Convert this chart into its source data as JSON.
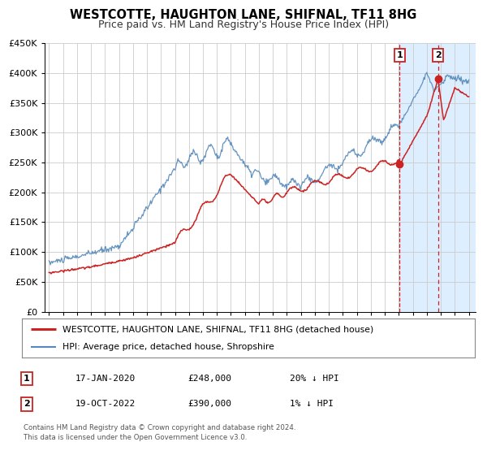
{
  "title": "WESTCOTTE, HAUGHTON LANE, SHIFNAL, TF11 8HG",
  "subtitle": "Price paid vs. HM Land Registry's House Price Index (HPI)",
  "title_fontsize": 10.5,
  "subtitle_fontsize": 9,
  "ylim": [
    0,
    450000
  ],
  "yticks": [
    0,
    50000,
    100000,
    150000,
    200000,
    250000,
    300000,
    350000,
    400000,
    450000
  ],
  "ytick_labels": [
    "£0",
    "£50K",
    "£100K",
    "£150K",
    "£200K",
    "£250K",
    "£300K",
    "£350K",
    "£400K",
    "£450K"
  ],
  "x_start_year": 1995,
  "x_end_year": 2025,
  "hpi_color": "#5588bb",
  "price_color": "#cc2222",
  "marker_color": "#cc2222",
  "vline1_color": "#cc2222",
  "vline2_color": "#cc2222",
  "shade_color": "#ddeeff",
  "sale1_year": 2020.05,
  "sale1_price": 248000,
  "sale1_label": "1",
  "sale2_year": 2022.8,
  "sale2_price": 390000,
  "sale2_label": "2",
  "legend_label_red": "WESTCOTTE, HAUGHTON LANE, SHIFNAL, TF11 8HG (detached house)",
  "legend_label_blue": "HPI: Average price, detached house, Shropshire",
  "table_row1": [
    "1",
    "17-JAN-2020",
    "£248,000",
    "20% ↓ HPI"
  ],
  "table_row2": [
    "2",
    "19-OCT-2022",
    "£390,000",
    "1% ↓ HPI"
  ],
  "footnote1": "Contains HM Land Registry data © Crown copyright and database right 2024.",
  "footnote2": "This data is licensed under the Open Government Licence v3.0.",
  "background_color": "#ffffff",
  "grid_color": "#cccccc"
}
